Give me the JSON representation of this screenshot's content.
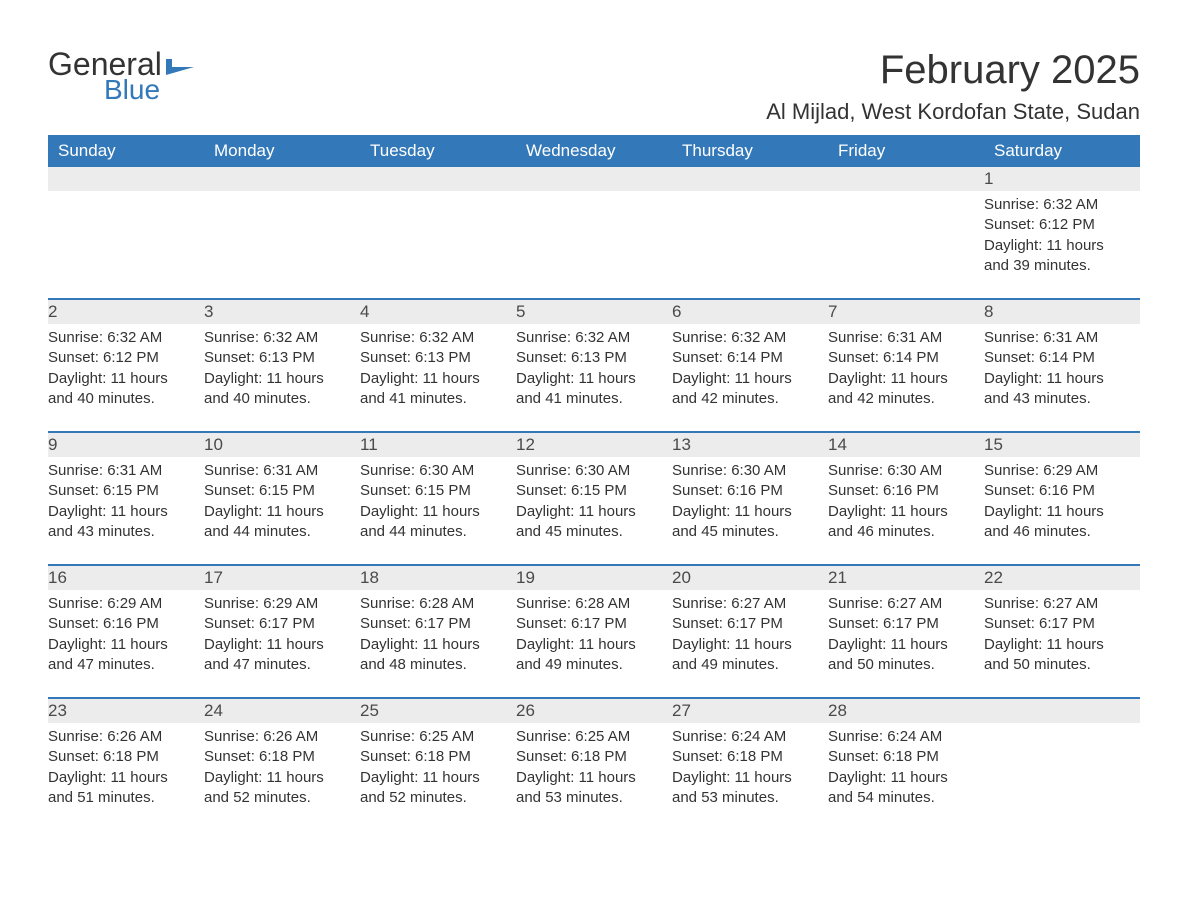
{
  "logo": {
    "text1": "General",
    "text2": "Blue",
    "flag_color": "#3378b8"
  },
  "title": {
    "month": "February 2025",
    "location": "Al Mijlad, West Kordofan State, Sudan"
  },
  "colors": {
    "header_bg": "#3378b8",
    "header_text": "#ffffff",
    "row_divider": "#3378b8",
    "daynum_bg": "#ececec",
    "body_text": "#333333",
    "background": "#ffffff"
  },
  "fonts": {
    "month_title_pt": 40,
    "location_pt": 22,
    "weekday_pt": 17,
    "daynum_pt": 17,
    "cell_pt": 15
  },
  "weekdays": [
    "Sunday",
    "Monday",
    "Tuesday",
    "Wednesday",
    "Thursday",
    "Friday",
    "Saturday"
  ],
  "weeks": [
    [
      {
        "day": "",
        "sunrise": "",
        "sunset": "",
        "daylight": ""
      },
      {
        "day": "",
        "sunrise": "",
        "sunset": "",
        "daylight": ""
      },
      {
        "day": "",
        "sunrise": "",
        "sunset": "",
        "daylight": ""
      },
      {
        "day": "",
        "sunrise": "",
        "sunset": "",
        "daylight": ""
      },
      {
        "day": "",
        "sunrise": "",
        "sunset": "",
        "daylight": ""
      },
      {
        "day": "",
        "sunrise": "",
        "sunset": "",
        "daylight": ""
      },
      {
        "day": "1",
        "sunrise": "Sunrise: 6:32 AM",
        "sunset": "Sunset: 6:12 PM",
        "daylight": "Daylight: 11 hours and 39 minutes."
      }
    ],
    [
      {
        "day": "2",
        "sunrise": "Sunrise: 6:32 AM",
        "sunset": "Sunset: 6:12 PM",
        "daylight": "Daylight: 11 hours and 40 minutes."
      },
      {
        "day": "3",
        "sunrise": "Sunrise: 6:32 AM",
        "sunset": "Sunset: 6:13 PM",
        "daylight": "Daylight: 11 hours and 40 minutes."
      },
      {
        "day": "4",
        "sunrise": "Sunrise: 6:32 AM",
        "sunset": "Sunset: 6:13 PM",
        "daylight": "Daylight: 11 hours and 41 minutes."
      },
      {
        "day": "5",
        "sunrise": "Sunrise: 6:32 AM",
        "sunset": "Sunset: 6:13 PM",
        "daylight": "Daylight: 11 hours and 41 minutes."
      },
      {
        "day": "6",
        "sunrise": "Sunrise: 6:32 AM",
        "sunset": "Sunset: 6:14 PM",
        "daylight": "Daylight: 11 hours and 42 minutes."
      },
      {
        "day": "7",
        "sunrise": "Sunrise: 6:31 AM",
        "sunset": "Sunset: 6:14 PM",
        "daylight": "Daylight: 11 hours and 42 minutes."
      },
      {
        "day": "8",
        "sunrise": "Sunrise: 6:31 AM",
        "sunset": "Sunset: 6:14 PM",
        "daylight": "Daylight: 11 hours and 43 minutes."
      }
    ],
    [
      {
        "day": "9",
        "sunrise": "Sunrise: 6:31 AM",
        "sunset": "Sunset: 6:15 PM",
        "daylight": "Daylight: 11 hours and 43 minutes."
      },
      {
        "day": "10",
        "sunrise": "Sunrise: 6:31 AM",
        "sunset": "Sunset: 6:15 PM",
        "daylight": "Daylight: 11 hours and 44 minutes."
      },
      {
        "day": "11",
        "sunrise": "Sunrise: 6:30 AM",
        "sunset": "Sunset: 6:15 PM",
        "daylight": "Daylight: 11 hours and 44 minutes."
      },
      {
        "day": "12",
        "sunrise": "Sunrise: 6:30 AM",
        "sunset": "Sunset: 6:15 PM",
        "daylight": "Daylight: 11 hours and 45 minutes."
      },
      {
        "day": "13",
        "sunrise": "Sunrise: 6:30 AM",
        "sunset": "Sunset: 6:16 PM",
        "daylight": "Daylight: 11 hours and 45 minutes."
      },
      {
        "day": "14",
        "sunrise": "Sunrise: 6:30 AM",
        "sunset": "Sunset: 6:16 PM",
        "daylight": "Daylight: 11 hours and 46 minutes."
      },
      {
        "day": "15",
        "sunrise": "Sunrise: 6:29 AM",
        "sunset": "Sunset: 6:16 PM",
        "daylight": "Daylight: 11 hours and 46 minutes."
      }
    ],
    [
      {
        "day": "16",
        "sunrise": "Sunrise: 6:29 AM",
        "sunset": "Sunset: 6:16 PM",
        "daylight": "Daylight: 11 hours and 47 minutes."
      },
      {
        "day": "17",
        "sunrise": "Sunrise: 6:29 AM",
        "sunset": "Sunset: 6:17 PM",
        "daylight": "Daylight: 11 hours and 47 minutes."
      },
      {
        "day": "18",
        "sunrise": "Sunrise: 6:28 AM",
        "sunset": "Sunset: 6:17 PM",
        "daylight": "Daylight: 11 hours and 48 minutes."
      },
      {
        "day": "19",
        "sunrise": "Sunrise: 6:28 AM",
        "sunset": "Sunset: 6:17 PM",
        "daylight": "Daylight: 11 hours and 49 minutes."
      },
      {
        "day": "20",
        "sunrise": "Sunrise: 6:27 AM",
        "sunset": "Sunset: 6:17 PM",
        "daylight": "Daylight: 11 hours and 49 minutes."
      },
      {
        "day": "21",
        "sunrise": "Sunrise: 6:27 AM",
        "sunset": "Sunset: 6:17 PM",
        "daylight": "Daylight: 11 hours and 50 minutes."
      },
      {
        "day": "22",
        "sunrise": "Sunrise: 6:27 AM",
        "sunset": "Sunset: 6:17 PM",
        "daylight": "Daylight: 11 hours and 50 minutes."
      }
    ],
    [
      {
        "day": "23",
        "sunrise": "Sunrise: 6:26 AM",
        "sunset": "Sunset: 6:18 PM",
        "daylight": "Daylight: 11 hours and 51 minutes."
      },
      {
        "day": "24",
        "sunrise": "Sunrise: 6:26 AM",
        "sunset": "Sunset: 6:18 PM",
        "daylight": "Daylight: 11 hours and 52 minutes."
      },
      {
        "day": "25",
        "sunrise": "Sunrise: 6:25 AM",
        "sunset": "Sunset: 6:18 PM",
        "daylight": "Daylight: 11 hours and 52 minutes."
      },
      {
        "day": "26",
        "sunrise": "Sunrise: 6:25 AM",
        "sunset": "Sunset: 6:18 PM",
        "daylight": "Daylight: 11 hours and 53 minutes."
      },
      {
        "day": "27",
        "sunrise": "Sunrise: 6:24 AM",
        "sunset": "Sunset: 6:18 PM",
        "daylight": "Daylight: 11 hours and 53 minutes."
      },
      {
        "day": "28",
        "sunrise": "Sunrise: 6:24 AM",
        "sunset": "Sunset: 6:18 PM",
        "daylight": "Daylight: 11 hours and 54 minutes."
      },
      {
        "day": "",
        "sunrise": "",
        "sunset": "",
        "daylight": ""
      }
    ]
  ]
}
